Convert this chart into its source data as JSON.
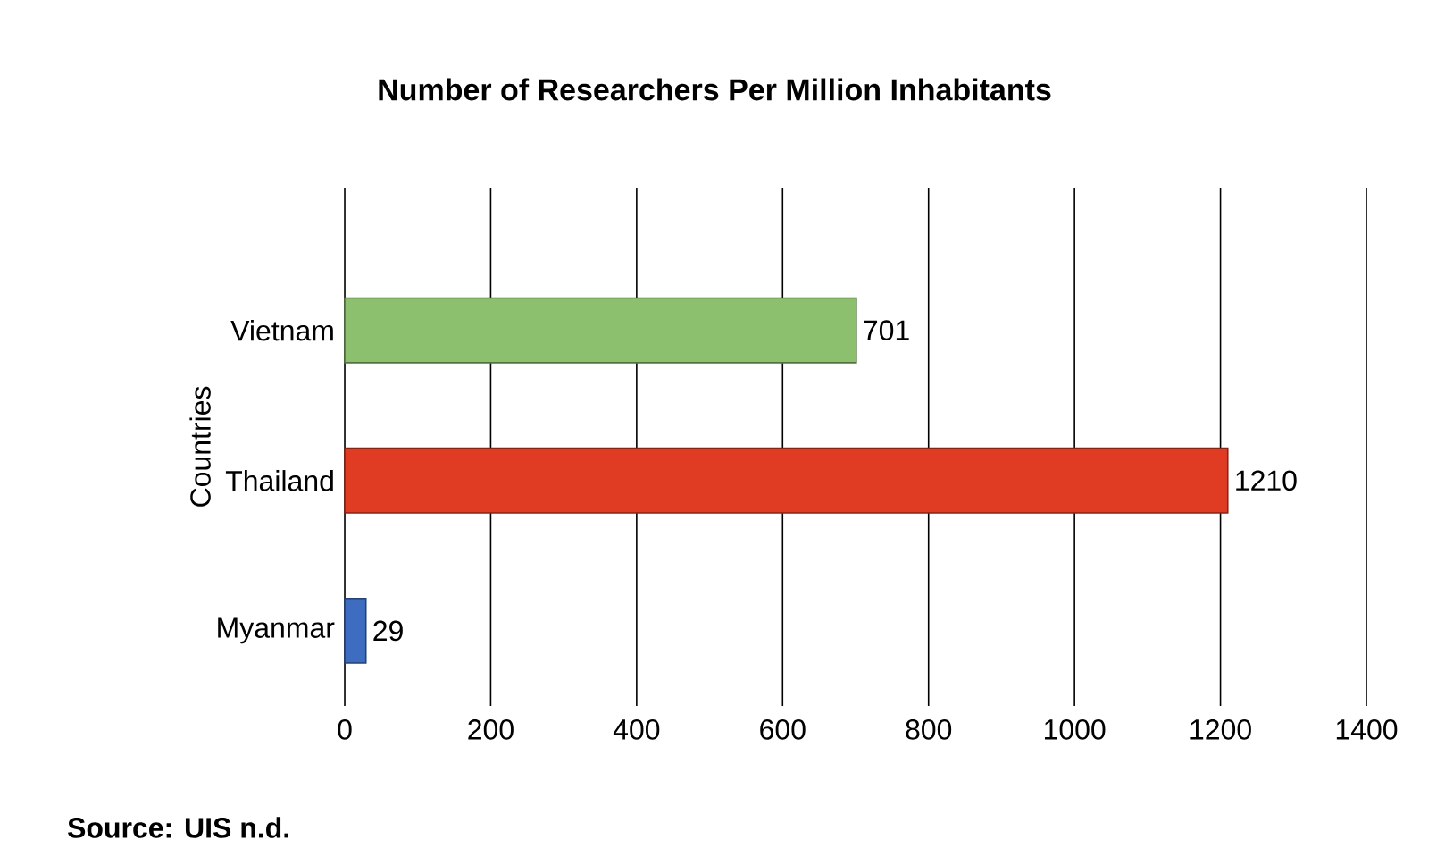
{
  "chart_data": {
    "type": "bar",
    "orientation": "horizontal",
    "title": "Number of Researchers Per Million Inhabitants",
    "ylabel": "Countries",
    "categories": [
      "Vietnam",
      "Thailand",
      "Myanmar"
    ],
    "values": [
      701,
      1210,
      29
    ],
    "colors": [
      "#8cc06e",
      "#e03c24",
      "#3d6cc0"
    ],
    "xlim": [
      0,
      1400
    ],
    "xticks": [
      0,
      200,
      400,
      600,
      800,
      1000,
      1200,
      1400
    ],
    "grid": "x",
    "data_labels": true,
    "annotations": [
      "Source: UIS n.d."
    ]
  }
}
